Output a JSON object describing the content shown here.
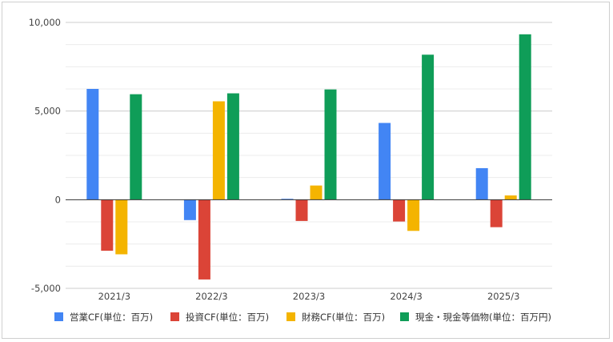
{
  "chart_data": {
    "type": "bar",
    "categories": [
      "2021/3",
      "2022/3",
      "2023/3",
      "2024/3",
      "2025/3"
    ],
    "series": [
      {
        "name": "営業CF(単位：百万)",
        "color": "#4285f4",
        "values": [
          6250,
          -1150,
          50,
          4330,
          1780
        ]
      },
      {
        "name": "投資CF(単位：百万)",
        "color": "#db4437",
        "values": [
          -2880,
          -4500,
          -1200,
          -1230,
          -1550
        ]
      },
      {
        "name": "財務CF(単位：百万)",
        "color": "#f4b400",
        "values": [
          -3080,
          5550,
          800,
          -1760,
          240
        ]
      },
      {
        "name": "現金・現金等価物(単位：百万円)",
        "color": "#0f9d58",
        "values": [
          5950,
          6000,
          6220,
          8180,
          9330
        ]
      }
    ],
    "yticks": [
      {
        "value": 10000,
        "label": "10,000"
      },
      {
        "value": 5000,
        "label": "5,000"
      },
      {
        "value": 0,
        "label": "0"
      },
      {
        "value": -5000,
        "label": "-5,000"
      }
    ],
    "ylim": [
      -5000,
      10000
    ],
    "grid": true,
    "minor_grid": true,
    "legend": "bottom",
    "title": "",
    "xlabel": "",
    "ylabel": ""
  }
}
